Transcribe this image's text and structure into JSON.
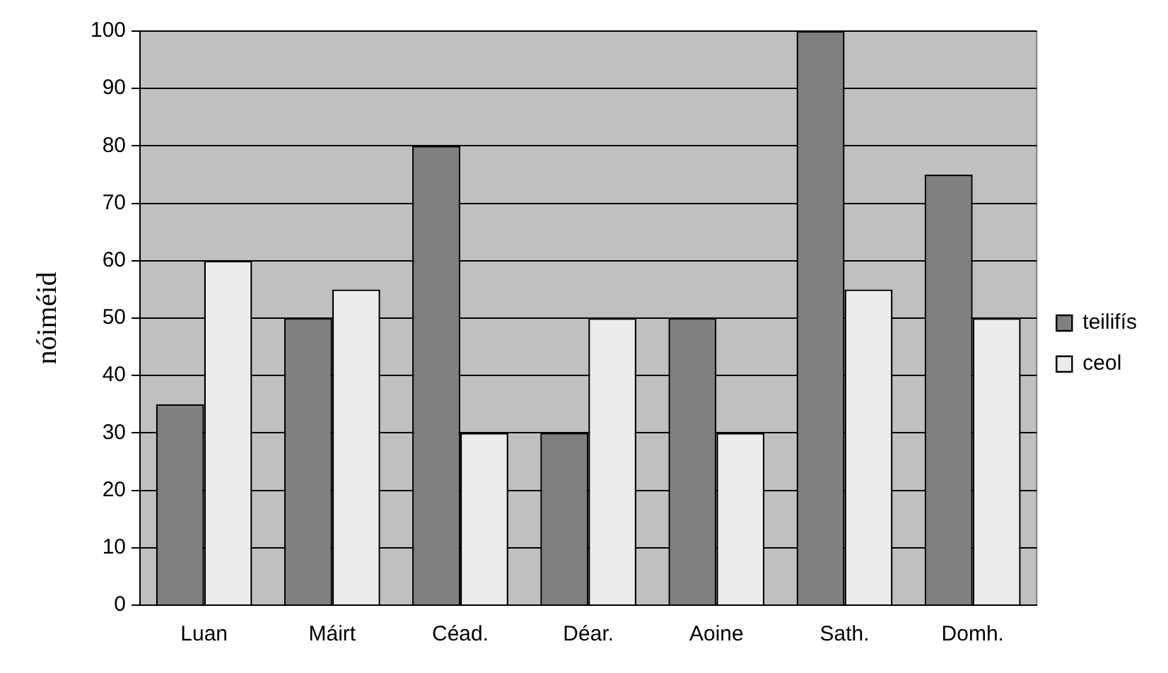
{
  "chart_data": {
    "type": "bar",
    "ylabel": "nóiméid",
    "categories": [
      "Luan",
      "Máirt",
      "Céad.",
      "Déar.",
      "Aoine",
      "Sath.",
      "Domh."
    ],
    "series": [
      {
        "name": "teilifís",
        "color": "#808080",
        "values": [
          35,
          50,
          80,
          30,
          50,
          100,
          75
        ]
      },
      {
        "name": "ceol",
        "color": "#ececec",
        "values": [
          60,
          55,
          30,
          50,
          30,
          55,
          50
        ]
      }
    ],
    "ylim": [
      0,
      100
    ],
    "yticks": [
      0,
      10,
      20,
      30,
      40,
      50,
      60,
      70,
      80,
      90,
      100
    ],
    "grid": "y",
    "legend": "right"
  }
}
